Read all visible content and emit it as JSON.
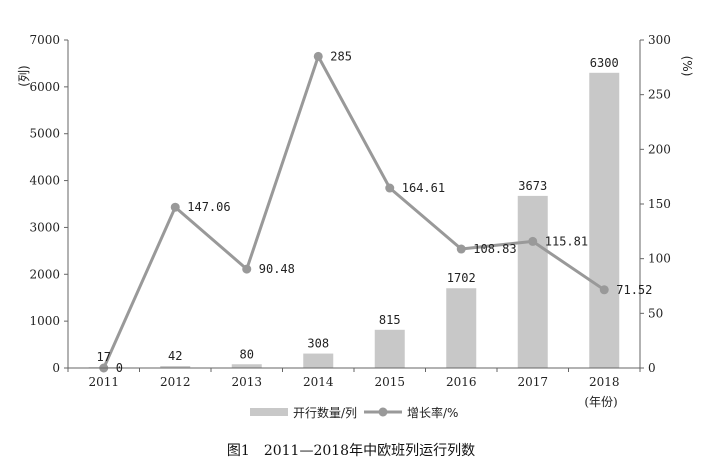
{
  "chart_data": {
    "type": "bar",
    "title": "图1　2011—2018年中欧班列运行列数",
    "categories": [
      "2011",
      "2012",
      "2013",
      "2014",
      "2015",
      "2016",
      "2017",
      "2018"
    ],
    "x_unit_label": "(年份)",
    "y_left_label": "(列)",
    "y_right_label": "(%)",
    "y_left_ticks": [
      "0",
      "1000",
      "2000",
      "3000",
      "4000",
      "5000",
      "6000",
      "7000"
    ],
    "y_right_ticks": [
      "0",
      "50",
      "100",
      "150",
      "200",
      "250",
      "300"
    ],
    "ylim_left": [
      0,
      7000
    ],
    "ylim_right": [
      0,
      300
    ],
    "legend_position": "bottom",
    "series": [
      {
        "name": "开行数量/列",
        "type": "bar",
        "axis": "left",
        "color": "#c8c8c8",
        "values": [
          17,
          42,
          80,
          308,
          815,
          1702,
          3673,
          6300
        ],
        "labels": [
          "17",
          "42",
          "80",
          "308",
          "815",
          "1702",
          "3673",
          "6300"
        ]
      },
      {
        "name": "增长率/%",
        "type": "line",
        "axis": "right",
        "color": "#999999",
        "values": [
          0,
          147.06,
          90.48,
          285,
          164.61,
          108.83,
          115.81,
          71.52
        ],
        "labels": [
          "0",
          "147.06",
          "90.48",
          "285",
          "164.61",
          "108.83",
          "115.81",
          "71.52"
        ]
      }
    ]
  }
}
